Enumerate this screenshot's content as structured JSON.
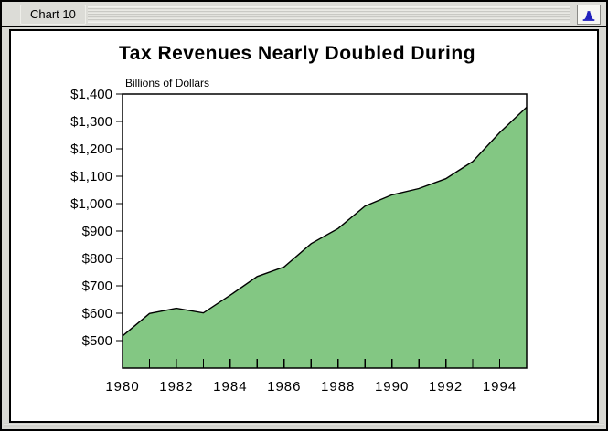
{
  "window": {
    "title": "Chart 10",
    "icon": "bell-icon",
    "icon_color": "#2121bd"
  },
  "chart_data": {
    "type": "area",
    "title": "Tax Revenues Nearly Doubled During",
    "unit_label": "Billions of Dollars",
    "x": [
      1980,
      1981,
      1982,
      1983,
      1984,
      1985,
      1986,
      1987,
      1988,
      1989,
      1990,
      1991,
      1992,
      1993,
      1994,
      1995
    ],
    "values": [
      517,
      599,
      618,
      601,
      666,
      734,
      769,
      854,
      909,
      991,
      1032,
      1055,
      1091,
      1154,
      1259,
      1352
    ],
    "xlim": [
      1980,
      1995
    ],
    "ylim": [
      400,
      1400
    ],
    "yticks": [
      500,
      600,
      700,
      800,
      900,
      1000,
      1100,
      1200,
      1300,
      1400
    ],
    "ytick_labels": [
      "$500",
      "$600",
      "$700",
      "$800",
      "$900",
      "$1,000",
      "$1,100",
      "$1,200",
      "$1,300",
      "$1,400"
    ],
    "xticks": [
      1980,
      1981,
      1982,
      1983,
      1984,
      1985,
      1986,
      1987,
      1988,
      1989,
      1990,
      1991,
      1992,
      1993,
      1994,
      1995
    ],
    "xlabel_years": [
      1980,
      1982,
      1984,
      1986,
      1988,
      1990,
      1992,
      1994
    ],
    "xtick_labels": [
      "1980",
      "1982",
      "1984",
      "1986",
      "1988",
      "1990",
      "1992",
      "1994"
    ],
    "fill_color": "#83c783",
    "line_color": "#000000",
    "grid": false,
    "legend": "none"
  }
}
